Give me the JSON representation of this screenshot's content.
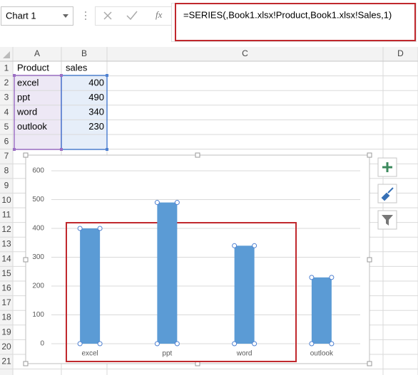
{
  "name_box": "Chart 1",
  "formula": "=SERIES(,Book1.xlsx!Product,Book1.xlsx!Sales,1)",
  "columns": [
    "A",
    "B",
    "C",
    "D"
  ],
  "rows": [
    "1",
    "2",
    "3",
    "4",
    "5",
    "6",
    "7",
    "8",
    "9",
    "10",
    "11",
    "12",
    "13",
    "14",
    "15",
    "16",
    "17",
    "18",
    "19",
    "20",
    "21"
  ],
  "cells": [
    [
      "Product",
      "sales"
    ],
    [
      "excel",
      400
    ],
    [
      "ppt",
      490
    ],
    [
      "word",
      340
    ],
    [
      "outlook",
      230
    ]
  ],
  "chart_data": {
    "type": "bar",
    "categories": [
      "excel",
      "ppt",
      "word",
      "outlook"
    ],
    "values": [
      400,
      490,
      340,
      230
    ],
    "color": "#5b9bd5",
    "ylim": [
      0,
      600
    ],
    "yticks": [
      0,
      100,
      200,
      300,
      400,
      500,
      600
    ],
    "grid": true
  }
}
